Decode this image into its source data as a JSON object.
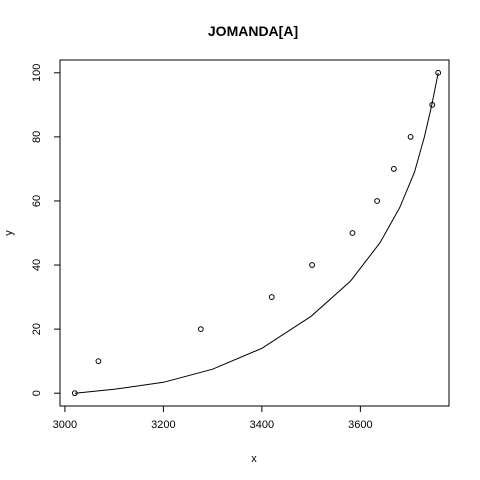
{
  "chart_data": {
    "type": "scatter",
    "title": "JOMANDA[A]",
    "xlabel": "x",
    "ylabel": "y",
    "xlim": [
      2990,
      3780
    ],
    "ylim": [
      -4,
      104
    ],
    "x_ticks": [
      3000,
      3200,
      3400,
      3600
    ],
    "y_ticks": [
      0,
      20,
      40,
      60,
      80,
      100
    ],
    "points": [
      {
        "x": 3020,
        "y": 0
      },
      {
        "x": 3068,
        "y": 10
      },
      {
        "x": 3276,
        "y": 20
      },
      {
        "x": 3420,
        "y": 30
      },
      {
        "x": 3502,
        "y": 40
      },
      {
        "x": 3584,
        "y": 50
      },
      {
        "x": 3634,
        "y": 60
      },
      {
        "x": 3668,
        "y": 70
      },
      {
        "x": 3702,
        "y": 80
      },
      {
        "x": 3746,
        "y": 90
      },
      {
        "x": 3758,
        "y": 100
      }
    ],
    "fit_curve": [
      {
        "x": 3020,
        "y": 0
      },
      {
        "x": 3100,
        "y": 1.2
      },
      {
        "x": 3200,
        "y": 3.4
      },
      {
        "x": 3300,
        "y": 7.5
      },
      {
        "x": 3400,
        "y": 14
      },
      {
        "x": 3500,
        "y": 24
      },
      {
        "x": 3580,
        "y": 35
      },
      {
        "x": 3640,
        "y": 47
      },
      {
        "x": 3680,
        "y": 58
      },
      {
        "x": 3710,
        "y": 69
      },
      {
        "x": 3730,
        "y": 80
      },
      {
        "x": 3745,
        "y": 90
      },
      {
        "x": 3758,
        "y": 100
      }
    ],
    "grid": false,
    "legend": "none"
  }
}
